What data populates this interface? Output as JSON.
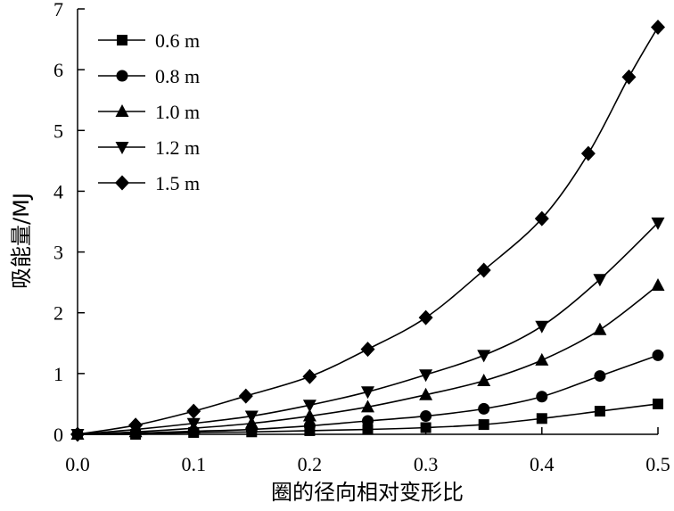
{
  "chart_data": {
    "type": "line",
    "xlabel": "圈的径向相对变形比",
    "ylabel": "吸能量/MJ",
    "xlim": [
      0,
      0.5
    ],
    "ylim": [
      0,
      7
    ],
    "x_ticks": [
      "0.0",
      "0.1",
      "0.2",
      "0.3",
      "0.4",
      "0.5"
    ],
    "y_ticks": [
      "0",
      "1",
      "2",
      "3",
      "4",
      "5",
      "6",
      "7"
    ],
    "grid": false,
    "legend_position": "top-left",
    "series": [
      {
        "name": "0.6 m",
        "marker": "square",
        "x": [
          0,
          0.05,
          0.1,
          0.15,
          0.2,
          0.25,
          0.3,
          0.35,
          0.4,
          0.45,
          0.5
        ],
        "y": [
          0,
          0.0,
          0.03,
          0.04,
          0.06,
          0.08,
          0.11,
          0.16,
          0.26,
          0.38,
          0.5
        ]
      },
      {
        "name": "0.8 m",
        "marker": "circle",
        "x": [
          0,
          0.05,
          0.1,
          0.15,
          0.2,
          0.25,
          0.3,
          0.35,
          0.4,
          0.45,
          0.5
        ],
        "y": [
          0,
          0.02,
          0.05,
          0.08,
          0.14,
          0.22,
          0.3,
          0.42,
          0.62,
          0.96,
          1.3
        ]
      },
      {
        "name": "1.0 m",
        "marker": "triangle-up",
        "x": [
          0,
          0.05,
          0.1,
          0.15,
          0.2,
          0.25,
          0.3,
          0.35,
          0.4,
          0.45,
          0.5
        ],
        "y": [
          0,
          0.04,
          0.1,
          0.18,
          0.3,
          0.45,
          0.65,
          0.88,
          1.22,
          1.72,
          2.45
        ]
      },
      {
        "name": "1.2 m",
        "marker": "triangle-down",
        "x": [
          0,
          0.05,
          0.1,
          0.15,
          0.2,
          0.25,
          0.3,
          0.35,
          0.4,
          0.45,
          0.5
        ],
        "y": [
          0,
          0.08,
          0.18,
          0.3,
          0.48,
          0.7,
          0.98,
          1.3,
          1.78,
          2.55,
          3.48
        ]
      },
      {
        "name": "1.5 m",
        "marker": "diamond",
        "x": [
          0,
          0.05,
          0.1,
          0.145,
          0.2,
          0.25,
          0.3,
          0.35,
          0.4,
          0.44,
          0.475,
          0.5
        ],
        "y": [
          0,
          0.15,
          0.38,
          0.63,
          0.95,
          1.4,
          1.92,
          2.7,
          3.55,
          4.62,
          5.88,
          6.7
        ]
      }
    ]
  }
}
